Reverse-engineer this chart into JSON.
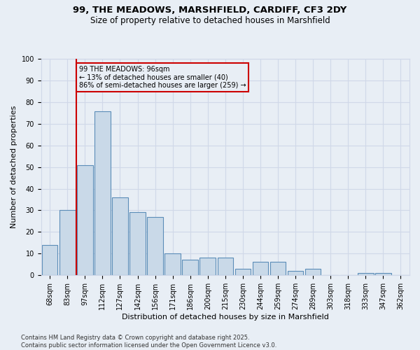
{
  "title_line1": "99, THE MEADOWS, MARSHFIELD, CARDIFF, CF3 2DY",
  "title_line2": "Size of property relative to detached houses in Marshfield",
  "xlabel": "Distribution of detached houses by size in Marshfield",
  "ylabel": "Number of detached properties",
  "bar_labels": [
    "68sqm",
    "83sqm",
    "97sqm",
    "112sqm",
    "127sqm",
    "142sqm",
    "156sqm",
    "171sqm",
    "186sqm",
    "200sqm",
    "215sqm",
    "230sqm",
    "244sqm",
    "259sqm",
    "274sqm",
    "289sqm",
    "303sqm",
    "318sqm",
    "333sqm",
    "347sqm",
    "362sqm"
  ],
  "bar_values": [
    14,
    30,
    51,
    76,
    36,
    29,
    27,
    10,
    7,
    8,
    8,
    3,
    6,
    6,
    2,
    3,
    0,
    0,
    1,
    1,
    0
  ],
  "bar_color": "#c9d9e8",
  "bar_edgecolor": "#5b8db8",
  "grid_color": "#d0d8e8",
  "background_color": "#e8eef5",
  "vline_color": "#cc0000",
  "annotation_text": "99 THE MEADOWS: 96sqm\n← 13% of detached houses are smaller (40)\n86% of semi-detached houses are larger (259) →",
  "annotation_box_color": "#cc0000",
  "ylim": [
    0,
    100
  ],
  "yticks": [
    0,
    10,
    20,
    30,
    40,
    50,
    60,
    70,
    80,
    90,
    100
  ],
  "footer_text": "Contains HM Land Registry data © Crown copyright and database right 2025.\nContains public sector information licensed under the Open Government Licence v3.0.",
  "title_fontsize": 9.5,
  "subtitle_fontsize": 8.5,
  "axis_label_fontsize": 8,
  "tick_fontsize": 7,
  "annotation_fontsize": 7,
  "footer_fontsize": 6
}
